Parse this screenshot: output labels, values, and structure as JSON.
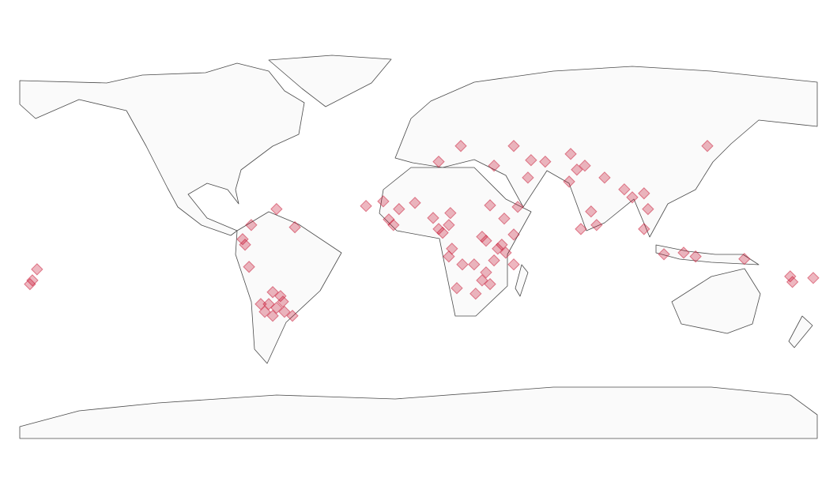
{
  "chart_data": {
    "type": "map-scatter",
    "color": "#c8102e",
    "xlim": [
      -180,
      180
    ],
    "ylim": [
      -90,
      90
    ],
    "lon": [
      -172.2,
      -174.3,
      -175.4,
      -79.4,
      -78.3,
      -75.5,
      -76.5,
      -55.8,
      -64.1,
      -65.8,
      -62.3,
      -67.6,
      -64.1,
      -60.5,
      -69.4,
      -65.8,
      -56.9,
      -71.2,
      -61.2,
      -23.7,
      -15.9,
      -13.4,
      -11.3,
      -8.8,
      -1.6,
      6.6,
      9.1,
      10.9,
      14.4,
      13.7,
      32.3,
      38.7,
      44.8,
      28.7,
      30.5,
      35.8,
      34.1,
      30.5,
      28.7,
      39.4,
      37.6,
      15.1,
      13.7,
      19.8,
      25.1,
      43.0,
      17.3,
      25.8,
      32.3,
      43.0,
      19.1,
      9.1,
      34.1,
      43.0,
      49.4,
      50.8,
      57.2,
      68.7,
      68.0,
      71.5,
      75.1,
      77.9,
      80.4,
      73.3,
      84.0,
      92.9,
      96.5,
      101.8,
      103.6,
      101.8,
      110.8,
      119.7,
      125.1,
      130.4,
      147.1,
      167.8,
      168.8,
      178.2
    ],
    "lat": [
      -13.6,
      -18.6,
      -20.3,
      0,
      -2.5,
      6.4,
      -12.5,
      5.4,
      13.6,
      -23.9,
      -25.7,
      -29.3,
      -31.0,
      -32.8,
      -32.8,
      -34.6,
      -34.6,
      -29.3,
      -28.2,
      15.0,
      17.1,
      8.9,
      6.4,
      13.6,
      16.4,
      9.6,
      4.6,
      2.9,
      11.8,
      6.4,
      15.3,
      9.3,
      14.6,
      1.1,
      -0.7,
      -4.3,
      -9.6,
      -15.0,
      -18.6,
      -6.1,
      -2.5,
      -4.3,
      -7.8,
      -11.4,
      -11.4,
      -11.4,
      -22.1,
      -24.6,
      -20.3,
      2.1,
      42.1,
      35.0,
      33.2,
      42.1,
      27.8,
      35.7,
      35.0,
      38.5,
      26.0,
      31.4,
      33.2,
      12.5,
      6.4,
      4.6,
      27.8,
      22.5,
      18.9,
      20.7,
      13.6,
      4.6,
      -6.8,
      -6.1,
      -7.8,
      42.1,
      -8.9,
      -16.8,
      -19.3,
      -17.5
    ]
  }
}
